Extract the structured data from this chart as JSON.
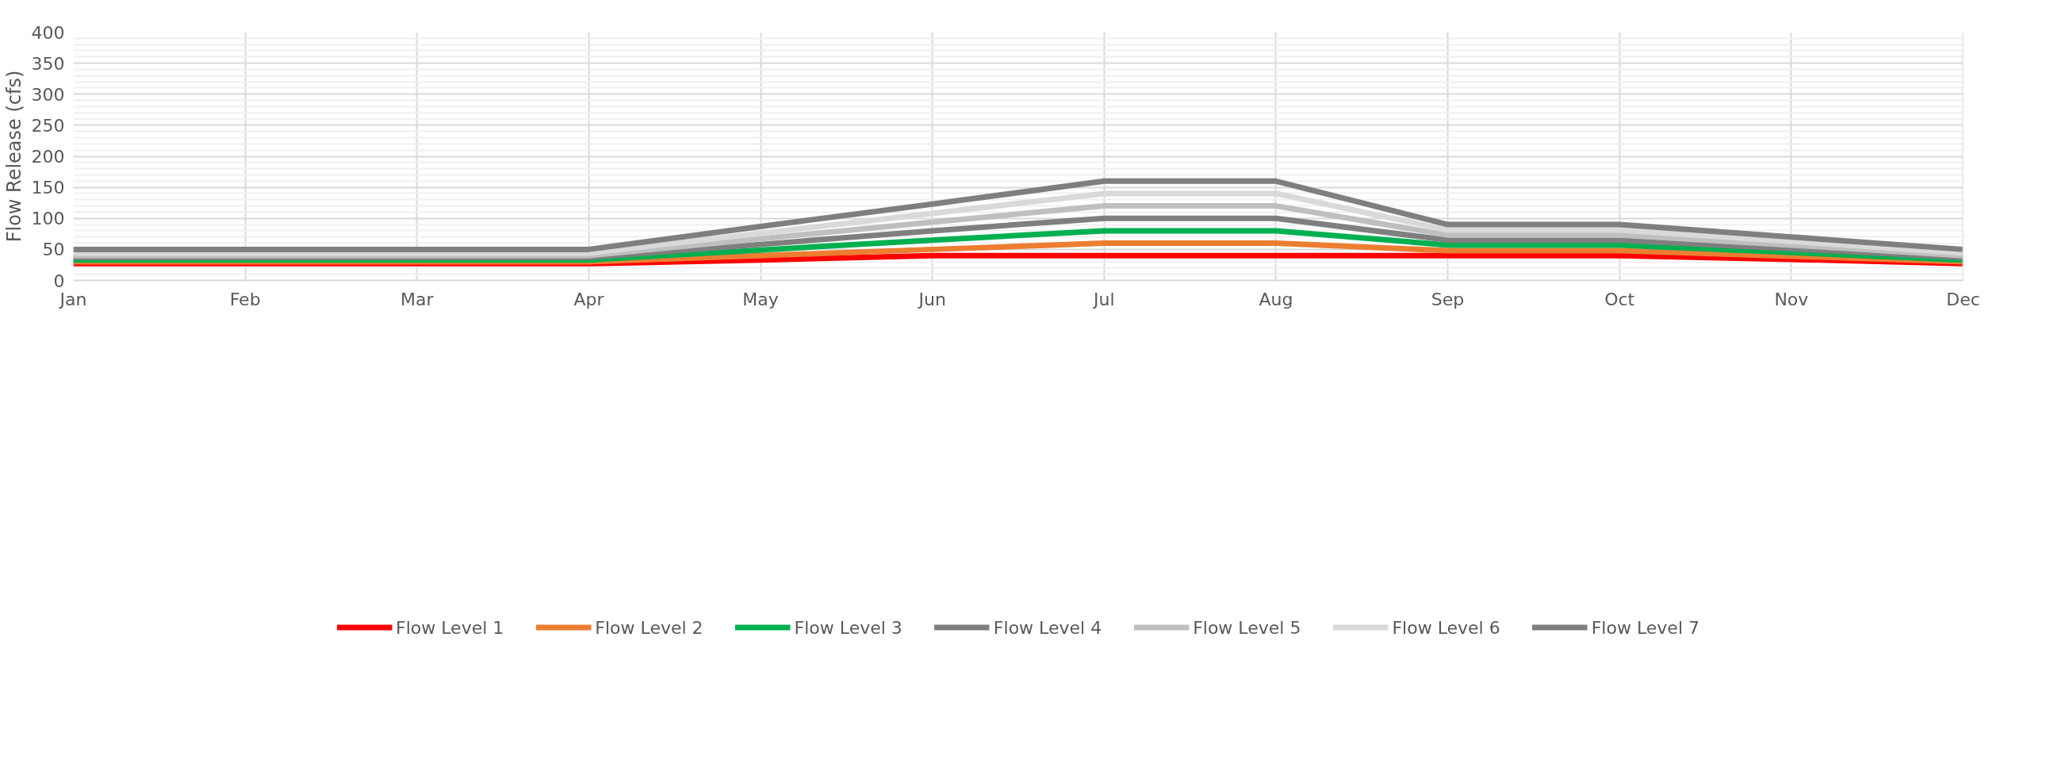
{
  "chart_data": {
    "type": "line",
    "ylabel": "Flow Release (cfs)",
    "categories": [
      "Jan",
      "Feb",
      "Mar",
      "Apr",
      "May",
      "Jun",
      "Jul",
      "Aug",
      "Sep",
      "Oct",
      "Nov",
      "Dec"
    ],
    "series": [
      {
        "name": "Flow Level 1",
        "color": "#ff0000",
        "values": [
          27,
          27,
          27,
          27,
          33,
          40,
          40,
          40,
          40,
          40,
          34,
          27
        ]
      },
      {
        "name": "Flow Level 2",
        "color": "#ed7d31",
        "values": [
          30,
          30,
          30,
          30,
          40,
          50,
          60,
          60,
          48,
          48,
          39,
          30
        ]
      },
      {
        "name": "Flow Level 3",
        "color": "#00b050",
        "values": [
          33,
          33,
          33,
          33,
          49,
          65,
          80,
          80,
          57,
          57,
          45,
          33
        ]
      },
      {
        "name": "Flow Level 4",
        "color": "#7f7f7f",
        "values": [
          37,
          37,
          37,
          37,
          58,
          80,
          100,
          100,
          65,
          65,
          51,
          37
        ]
      },
      {
        "name": "Flow Level 5",
        "color": "#bfbfbf",
        "values": [
          40,
          40,
          40,
          40,
          67,
          94,
          120,
          120,
          73,
          73,
          57,
          40
        ]
      },
      {
        "name": "Flow Level 6",
        "color": "#d9d9d9",
        "values": [
          44,
          44,
          44,
          44,
          76,
          108,
          140,
          140,
          81,
          81,
          63,
          44
        ]
      },
      {
        "name": "Flow Level 7",
        "color": "#7f7f7f",
        "values": [
          50,
          50,
          50,
          50,
          87,
          123,
          160,
          160,
          90,
          90,
          70,
          50
        ]
      }
    ],
    "ylim": [
      0,
      400
    ],
    "yticks": [
      0,
      {
        "value": 10,
        "label": null
      },
      {
        "value": 20,
        "label": null
      },
      {
        "value": 30,
        "label": null
      },
      {
        "value": 40,
        "label": null
      },
      50,
      {
        "value": 60,
        "label": null
      },
      {
        "value": 70,
        "label": null
      },
      {
        "value": 80,
        "label": null
      },
      {
        "value": 90,
        "label": null
      },
      100,
      {
        "value": 110,
        "label": null
      },
      {
        "value": 120,
        "label": null
      },
      {
        "value": 130,
        "label": null
      },
      {
        "value": 140,
        "label": null
      },
      150,
      {
        "value": 160,
        "label": null
      },
      {
        "value": 170,
        "label": null
      },
      {
        "value": 180,
        "label": null
      },
      {
        "value": 190,
        "label": null
      },
      200,
      {
        "value": 210,
        "label": null
      },
      {
        "value": 220,
        "label": null
      },
      {
        "value": 230,
        "label": null
      },
      {
        "value": 240,
        "label": null
      },
      250,
      {
        "value": 260,
        "label": null
      },
      {
        "value": 270,
        "label": null
      },
      {
        "value": 280,
        "label": null
      },
      {
        "value": 290,
        "label": null
      },
      300,
      {
        "value": 310,
        "label": null
      },
      {
        "value": 320,
        "label": null
      },
      {
        "value": 330,
        "label": null
      },
      {
        "value": 340,
        "label": null
      },
      350,
      {
        "value": 360,
        "label": null
      },
      {
        "value": 370,
        "label": null
      },
      {
        "value": 380,
        "label": null
      },
      {
        "value": 390,
        "label": null
      },
      400
    ],
    "grid": true,
    "legend": "bottom",
    "marker": "none",
    "line_style": "solid"
  }
}
